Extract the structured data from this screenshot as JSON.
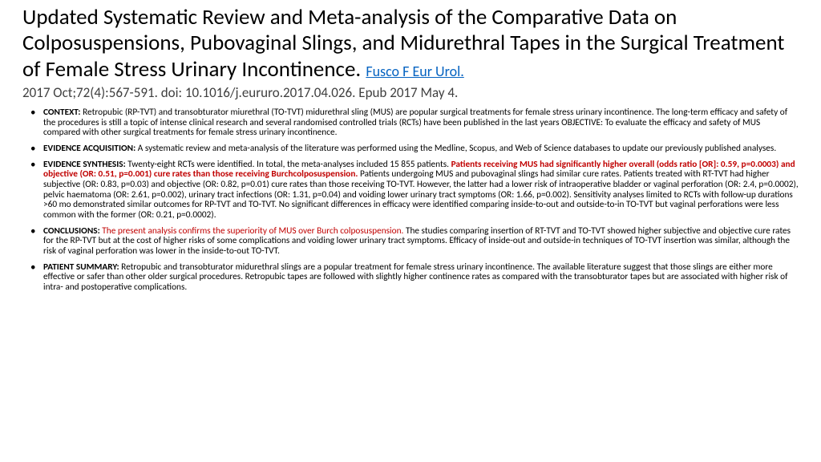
{
  "title_main": "Updated Systematic Review and Meta-analysis of the Comparative Data on Colposuspensions, Pubovaginal Slings, and Midurethral Tapes in the Surgical Treatment of Female Stress Urinary Incontinence.",
  "title_link": "Fusco F Eur Urol.",
  "citation": "2017 Oct;72(4):567-591. doi: 10.1016/j.eururo.2017.04.026. Epub 2017 May 4.",
  "context_label": "CONTEXT:",
  "context_text": " Retropubic (RP-TVT) and transobturator miurethral (TO-TVT) midurethral sling (MUS) are popular surgical treatments for female stress urinary incontinence. The long-term efficacy and safety of the procedures is still a topic of intense clinical research and several randomised controlled trials (RCTs) have been published in the last years OBJECTIVE: To evaluate the efficacy and safety of MUS compared with other surgical treatments for female stress urinary incontinence.",
  "acq_label": "EVIDENCE ACQUISITION:",
  "acq_text": " A systematic review and meta-analysis of the literature was performed using the Medline, Scopus, and Web of Science databases to update our previously published analyses.",
  "syn_label": "EVIDENCE SYNTHESIS:",
  "syn_pre": " Twenty-eight RCTs were identified. In total, the meta-analyses included 15 855 patients. ",
  "syn_hl": "Patients receiving MUS had significantly higher overall (odds ratio [OR]: 0.59, p=0.0003) and objective (OR: 0.51, p=0.001) cure rates than those receiving Burchcolposuspension.",
  "syn_post": " Patients undergoing MUS and pubovaginal slings had similar cure rates. Patients treated with RT-TVT had higher subjective (OR: 0.83, p=0.03) and objective (OR: 0.82, p=0.01) cure rates than those receiving TO-TVT. However, the latter had a lower risk of intraoperative bladder or vaginal perforation (OR: 2.4, p=0.0002), pelvic haematoma (OR: 2.61, p=0.002), urinary tract infections (OR: 1.31, p=0.04) and voiding lower urinary tract symptoms (OR: 1.66, p=0.002). Sensitivity analyses limited to RCTs with follow-up durations >60 mo demonstrated similar outcomes for RP-TVT and TO-TVT. No significant differences in efficacy were identified comparing inside-to-out and outside-to-in TO-TVT but vaginal perforations were less common with the former (OR: 0.21, p=0.0002).",
  "con_label": "CONCLUSIONS:",
  "con_hl": " The present analysis confirms the superiority of MUS over Burch colposuspension.",
  "con_post": " The studies comparing insertion of RT-TVT and TO-TVT showed higher subjective and objective cure rates for the RP-TVT but at the cost of higher risks of some complications and voiding lower urinary tract symptoms. Efficacy of inside-out and outside-in techniques of TO-TVT insertion was similar, although the risk of vaginal perforation was lower in the inside-to-out TO-TVT.",
  "pat_label": "PATIENT SUMMARY:",
  "pat_text": " Retropubic and transobturator midurethral slings are a popular treatment for female stress urinary incontinence. The available literature suggest that those slings are either more effective or safer than other older surgical procedures. Retropubic tapes are followed with slightly higher continence rates as compared with the transobturator tapes but are associated with higher risk of intra- and postoperative complications.",
  "colors": {
    "link": "#0563c1",
    "highlight": "#c00000",
    "text": "#000000",
    "muted": "#404040"
  }
}
